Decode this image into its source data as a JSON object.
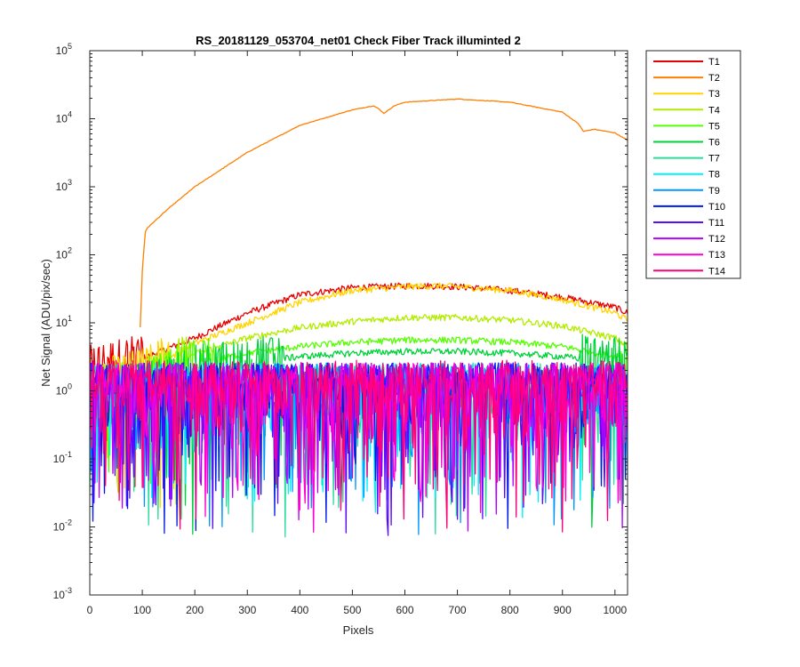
{
  "chart_data": {
    "type": "line",
    "title": "RS_20181129_053704_net01    Check Fiber      Track illuminted 2",
    "xlabel": "Pixels",
    "ylabel": "Net Signal (ADU/pix/sec)",
    "xlim": [
      0,
      1024
    ],
    "ylim": [
      0.001,
      100000
    ],
    "yscale": "log",
    "xticks": [
      0,
      100,
      200,
      300,
      400,
      500,
      600,
      700,
      800,
      900,
      1000
    ],
    "yticks": [
      {
        "value": 0.001,
        "base": "10",
        "exp": "-3"
      },
      {
        "value": 0.01,
        "base": "10",
        "exp": "-2"
      },
      {
        "value": 0.1,
        "base": "10",
        "exp": "-1"
      },
      {
        "value": 1,
        "base": "10",
        "exp": "0"
      },
      {
        "value": 10,
        "base": "10",
        "exp": "1"
      },
      {
        "value": 100,
        "base": "10",
        "exp": "2"
      },
      {
        "value": 1000,
        "base": "10",
        "exp": "3"
      },
      {
        "value": 10000,
        "base": "10",
        "exp": "4"
      },
      {
        "value": 100000,
        "base": "10",
        "exp": "5"
      }
    ],
    "grid": false,
    "legend_position": "outside-right-top",
    "series": [
      {
        "name": "T1",
        "color": "#e60000",
        "profile": {
          "x": [
            0,
            100,
            200,
            300,
            400,
            500,
            600,
            650,
            700,
            800,
            900,
            1000,
            1024
          ],
          "y": [
            2,
            3,
            6,
            14,
            26,
            33,
            35,
            35,
            34,
            30,
            24,
            17,
            14
          ]
        }
      },
      {
        "name": "T2",
        "color": "#ff7f00",
        "profile": {
          "x": [
            0,
            90,
            95,
            100,
            106,
            110,
            150,
            200,
            300,
            400,
            500,
            540,
            550,
            560,
            580,
            600,
            700,
            800,
            900,
            930,
            940,
            960,
            1000,
            1024
          ],
          "y": [
            null,
            null,
            5,
            60,
            220,
            250,
            480,
            1000,
            3200,
            8000,
            13500,
            15500,
            14000,
            12000,
            15500,
            17500,
            19500,
            17500,
            12500,
            8500,
            6500,
            7000,
            6200,
            4800
          ]
        }
      },
      {
        "name": "T3",
        "color": "#ffd400",
        "profile": {
          "x": [
            0,
            100,
            150,
            200,
            300,
            400,
            500,
            600,
            650,
            700,
            800,
            900,
            1000,
            1024
          ],
          "y": [
            1.2,
            1.8,
            3,
            5,
            10,
            20,
            30,
            34,
            35,
            34,
            30,
            22,
            14,
            11
          ]
        }
      },
      {
        "name": "T4",
        "color": "#b3ec00",
        "profile": {
          "x": [
            0,
            100,
            200,
            300,
            400,
            500,
            600,
            700,
            800,
            900,
            1000,
            1024
          ],
          "y": [
            1,
            1.3,
            3.5,
            6,
            8.5,
            10.5,
            12,
            12,
            11,
            9,
            6,
            4.5
          ]
        }
      },
      {
        "name": "T5",
        "color": "#55ff00",
        "profile": {
          "x": [
            0,
            100,
            200,
            300,
            400,
            500,
            600,
            700,
            800,
            900,
            1000,
            1024
          ],
          "y": [
            1,
            1.2,
            2.5,
            3.6,
            4.5,
            5.2,
            5.6,
            5.6,
            5.2,
            4.5,
            3.2,
            2.6
          ]
        }
      },
      {
        "name": "T6",
        "color": "#00d23c",
        "profile": {
          "x": [
            0,
            100,
            200,
            300,
            400,
            500,
            600,
            700,
            800,
            900,
            1000,
            1024
          ],
          "y": [
            1,
            1.1,
            2,
            2.6,
            3.2,
            3.6,
            3.8,
            3.8,
            3.6,
            3.2,
            2.6,
            2.2
          ]
        }
      },
      {
        "name": "T7",
        "color": "#2adc9a",
        "profile": {
          "x": [
            0,
            1024
          ],
          "y": [
            1.1,
            1.1
          ]
        }
      },
      {
        "name": "T8",
        "color": "#00f0ff",
        "profile": {
          "x": [
            0,
            1024
          ],
          "y": [
            1.1,
            1.1
          ]
        }
      },
      {
        "name": "T9",
        "color": "#0096ff",
        "profile": {
          "x": [
            0,
            1024
          ],
          "y": [
            1.1,
            1.1
          ]
        }
      },
      {
        "name": "T10",
        "color": "#0018e6",
        "profile": {
          "x": [
            0,
            1024
          ],
          "y": [
            1.1,
            1.1
          ]
        }
      },
      {
        "name": "T11",
        "color": "#5a0aff",
        "profile": {
          "x": [
            0,
            1024
          ],
          "y": [
            1.1,
            1.1
          ]
        }
      },
      {
        "name": "T12",
        "color": "#b400ff",
        "profile": {
          "x": [
            0,
            1024
          ],
          "y": [
            1.1,
            1.1
          ]
        }
      },
      {
        "name": "T13",
        "color": "#ff00d2",
        "profile": {
          "x": [
            0,
            1024
          ],
          "y": [
            1.1,
            1.1
          ]
        }
      },
      {
        "name": "T14",
        "color": "#ff0078",
        "profile": {
          "x": [
            0,
            1024
          ],
          "y": [
            1.2,
            1.2
          ]
        }
      }
    ]
  }
}
